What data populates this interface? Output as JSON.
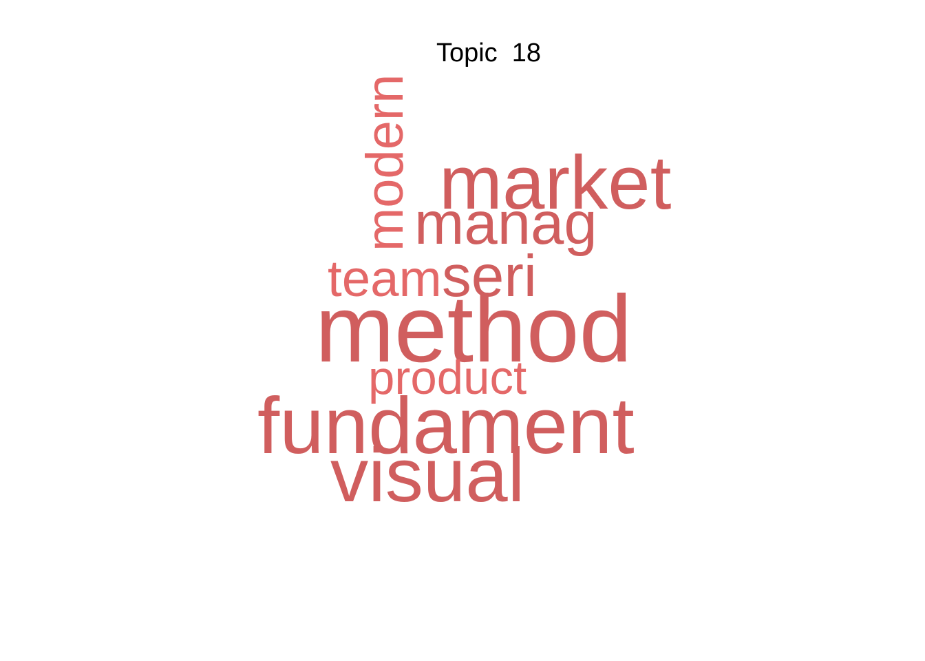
{
  "chart_data": {
    "type": "wordcloud",
    "title": "Topic  18",
    "words": [
      {
        "text": "method",
        "weight": 1.0,
        "color": "#d05e5e",
        "rotated": false
      },
      {
        "text": "fundament",
        "weight": 0.84,
        "color": "#d05e5e",
        "rotated": false
      },
      {
        "text": "market",
        "weight": 0.8,
        "color": "#d05e5e",
        "rotated": false
      },
      {
        "text": "visual",
        "weight": 0.8,
        "color": "#d05e5e",
        "rotated": false
      },
      {
        "text": "manag",
        "weight": 0.63,
        "color": "#d05e5e",
        "rotated": false
      },
      {
        "text": "seri",
        "weight": 0.62,
        "color": "#d05e5e",
        "rotated": false
      },
      {
        "text": "modern",
        "weight": 0.55,
        "color": "#e46868",
        "rotated": true
      },
      {
        "text": "team",
        "weight": 0.54,
        "color": "#e46868",
        "rotated": false
      },
      {
        "text": "product",
        "weight": 0.5,
        "color": "#e46868",
        "rotated": false
      }
    ]
  }
}
